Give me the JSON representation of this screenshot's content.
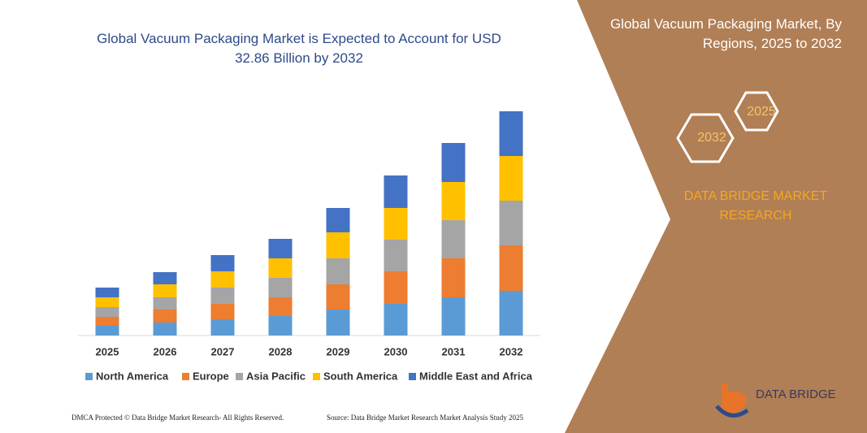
{
  "chart_data": {
    "type": "stacked-bar",
    "title": "Global Vacuum Packaging Market is Expected to Account for USD 32.86 Billion by 2032",
    "categories": [
      "2025",
      "2026",
      "2027",
      "2028",
      "2029",
      "2030",
      "2031",
      "2032"
    ],
    "series": [
      {
        "name": "North America",
        "color": "#5b9bd5",
        "values": [
          12,
          16,
          20,
          24,
          32,
          39,
          47,
          55
        ]
      },
      {
        "name": "Europe",
        "color": "#ed7d31",
        "values": [
          11,
          16,
          19,
          23,
          31,
          40,
          48,
          56
        ]
      },
      {
        "name": "Asia Pacific",
        "color": "#a5a5a5",
        "values": [
          12,
          15,
          20,
          24,
          32,
          39,
          47,
          55
        ]
      },
      {
        "name": "South America",
        "color": "#ffc000",
        "values": [
          12,
          16,
          20,
          24,
          32,
          39,
          47,
          55
        ]
      },
      {
        "name": "Middle East and Africa",
        "color": "#4472c4",
        "values": [
          12,
          15,
          20,
          24,
          30,
          40,
          48,
          55
        ]
      }
    ],
    "ylim": [
      0,
      280
    ],
    "legend": "bottom"
  },
  "side_panel": {
    "title": "Global Vacuum Packaging Market, By Regions, 2025 to 2032",
    "badges": [
      "2025",
      "2032"
    ],
    "brand": "DATA BRIDGE MARKET RESEARCH",
    "logo": "DATA BRIDGE"
  },
  "footer": {
    "left": "DMCA Protected © Data Bridge Market Research- All Rights Reserved.",
    "right": "Source: Data Bridge Market Research Market Analysis Study 2025"
  }
}
